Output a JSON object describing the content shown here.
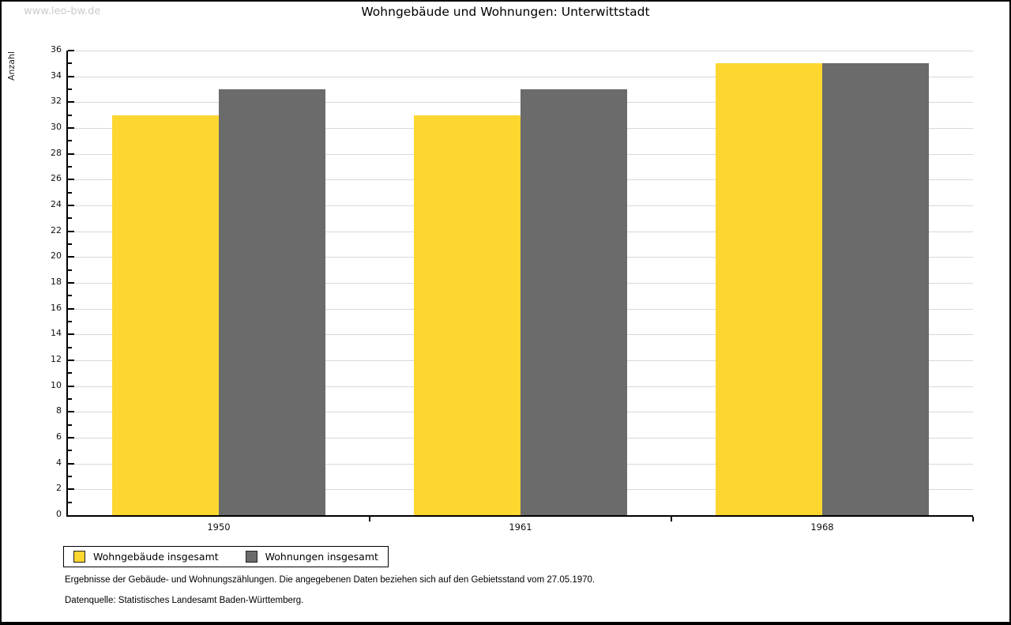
{
  "watermark": "www.leo-bw.de",
  "header": {
    "title": "Wohngebäude und Wohnungen: Unterwittstadt"
  },
  "chart_data": {
    "type": "bar",
    "title": "Wohngebäude und Wohnungen: Unterwittstadt",
    "xlabel": "",
    "ylabel": "Anzahl",
    "categories": [
      "1950",
      "1961",
      "1968"
    ],
    "series": [
      {
        "name": "Wohngebäude insgesamt",
        "color": "#FDD630",
        "values": [
          31,
          31,
          35
        ]
      },
      {
        "name": "Wohnungen insgesamt",
        "color": "#6B6B6B",
        "values": [
          33,
          33,
          35
        ]
      }
    ],
    "ylim": [
      0,
      36
    ],
    "ytick_step": 2,
    "yminor_step": 1,
    "grid": true,
    "legend_position": "bottom-left"
  },
  "colors": {
    "grid": "#d8d8d8",
    "axis": "#000000",
    "watermark": "#cbcbcb"
  },
  "footer": {
    "line1": "Ergebnisse der Gebäude- und Wohnungszählungen. Die angegebenen Daten beziehen sich auf den Gebietsstand vom 27.05.1970.",
    "line2": "Datenquelle: Statistisches Landesamt Baden-Württemberg."
  }
}
